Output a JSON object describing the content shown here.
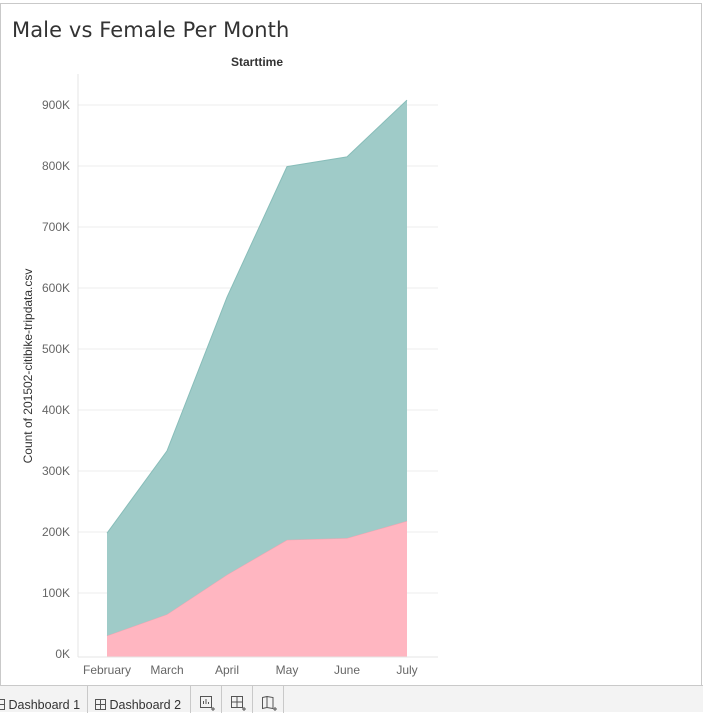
{
  "title": "Male vs Female Per Month",
  "tabs": [
    {
      "label": "Dashboard 1"
    },
    {
      "label": "Dashboard 2"
    }
  ],
  "tab_icons": [
    "new-worksheet-icon",
    "new-dashboard-icon",
    "new-story-icon"
  ],
  "chart_data": {
    "type": "area",
    "stacked": true,
    "title": "Starttime",
    "xlabel": "",
    "ylabel": "Count of 201502-citibike-tripdata.csv",
    "categories": [
      "February",
      "March",
      "April",
      "May",
      "June",
      "July"
    ],
    "ylim": [
      0,
      900000
    ],
    "yticks": [
      0,
      100000,
      200000,
      300000,
      400000,
      500000,
      600000,
      700000,
      800000,
      900000
    ],
    "ytick_labels": [
      "0K",
      "100K",
      "200K",
      "300K",
      "400K",
      "500K",
      "600K",
      "700K",
      "800K",
      "900K"
    ],
    "grid": true,
    "series": [
      {
        "values": [
          30000,
          65000,
          130000,
          187000,
          190000,
          218000
        ],
        "color": "#ffb6c1"
      },
      {
        "values": [
          168000,
          268000,
          455000,
          612000,
          625000,
          690000
        ],
        "color": "#9fcbc8"
      }
    ]
  }
}
